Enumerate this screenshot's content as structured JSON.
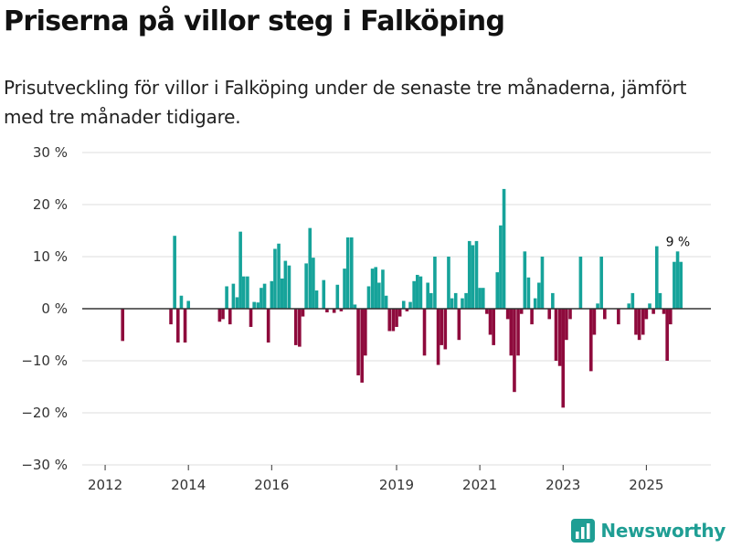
{
  "title": "Priserna på villor steg i Falköping",
  "subtitle": "Prisutveckling för villor i Falköping under de senaste tre månaderna, jämfört med tre månader tidigare.",
  "brand": {
    "name": "Newsworthy",
    "icon": "bar-chart-logo-icon"
  },
  "colors": {
    "positive": "#16a39a",
    "negative": "#8e0a3c",
    "grid": "#dddddd",
    "zero": "#333333",
    "text": "#333333"
  },
  "chart_data": {
    "type": "bar",
    "ylabel": "",
    "xlabel": "",
    "ylim": [
      -30,
      30
    ],
    "ytick_values": [
      30,
      20,
      10,
      0,
      -10,
      -20,
      -30
    ],
    "ytick_labels": [
      "30 %",
      "20 %",
      "10 %",
      "0 %",
      "−10 %",
      "−20 %",
      "−30 %"
    ],
    "xlim": [
      2011.45,
      2026.55
    ],
    "xticks": [
      {
        "value": 2012,
        "label": "2012"
      },
      {
        "value": 2014,
        "label": "2014"
      },
      {
        "value": 2016,
        "label": "2016"
      },
      {
        "value": 2019,
        "label": "2019"
      },
      {
        "value": 2021,
        "label": "2021"
      },
      {
        "value": 2023,
        "label": "2023"
      },
      {
        "value": 2025,
        "label": "2025"
      }
    ],
    "annotation": {
      "x": 2025.67,
      "value": 11,
      "label": "9 %"
    },
    "points": [
      {
        "x": 2012.42,
        "value": -6.2
      },
      {
        "x": 2013.58,
        "value": -3.0
      },
      {
        "x": 2013.67,
        "value": 14.0
      },
      {
        "x": 2013.75,
        "value": -6.5
      },
      {
        "x": 2013.83,
        "value": 2.5
      },
      {
        "x": 2013.92,
        "value": -6.5
      },
      {
        "x": 2014.0,
        "value": 1.5
      },
      {
        "x": 2014.75,
        "value": -2.5
      },
      {
        "x": 2014.83,
        "value": -2.0
      },
      {
        "x": 2014.92,
        "value": 4.3
      },
      {
        "x": 2015.0,
        "value": -3.0
      },
      {
        "x": 2015.08,
        "value": 4.8
      },
      {
        "x": 2015.17,
        "value": 2.2
      },
      {
        "x": 2015.25,
        "value": 14.8
      },
      {
        "x": 2015.33,
        "value": 6.2
      },
      {
        "x": 2015.42,
        "value": 6.2
      },
      {
        "x": 2015.5,
        "value": -3.5
      },
      {
        "x": 2015.58,
        "value": 1.3
      },
      {
        "x": 2015.67,
        "value": 1.2
      },
      {
        "x": 2015.75,
        "value": 4.0
      },
      {
        "x": 2015.83,
        "value": 4.8
      },
      {
        "x": 2015.92,
        "value": -6.5
      },
      {
        "x": 2016.0,
        "value": 5.3
      },
      {
        "x": 2016.08,
        "value": 11.5
      },
      {
        "x": 2016.17,
        "value": 12.5
      },
      {
        "x": 2016.25,
        "value": 5.8
      },
      {
        "x": 2016.33,
        "value": 9.2
      },
      {
        "x": 2016.42,
        "value": 8.3
      },
      {
        "x": 2016.58,
        "value": -7.0
      },
      {
        "x": 2016.67,
        "value": -7.3
      },
      {
        "x": 2016.75,
        "value": -1.5
      },
      {
        "x": 2016.83,
        "value": 8.7
      },
      {
        "x": 2016.92,
        "value": 15.5
      },
      {
        "x": 2017.0,
        "value": 9.8
      },
      {
        "x": 2017.08,
        "value": 3.5
      },
      {
        "x": 2017.25,
        "value": 5.5
      },
      {
        "x": 2017.33,
        "value": -0.7
      },
      {
        "x": 2017.5,
        "value": -0.8
      },
      {
        "x": 2017.58,
        "value": 4.6
      },
      {
        "x": 2017.67,
        "value": -0.5
      },
      {
        "x": 2017.75,
        "value": 7.7
      },
      {
        "x": 2017.83,
        "value": 13.7
      },
      {
        "x": 2017.92,
        "value": 13.7
      },
      {
        "x": 2018.0,
        "value": 0.8
      },
      {
        "x": 2018.08,
        "value": -12.8
      },
      {
        "x": 2018.17,
        "value": -14.2
      },
      {
        "x": 2018.25,
        "value": -9.0
      },
      {
        "x": 2018.33,
        "value": 4.3
      },
      {
        "x": 2018.42,
        "value": 7.7
      },
      {
        "x": 2018.5,
        "value": 8.0
      },
      {
        "x": 2018.58,
        "value": 5.0
      },
      {
        "x": 2018.67,
        "value": 7.5
      },
      {
        "x": 2018.75,
        "value": 2.5
      },
      {
        "x": 2018.83,
        "value": -4.3
      },
      {
        "x": 2018.92,
        "value": -4.3
      },
      {
        "x": 2019.0,
        "value": -3.5
      },
      {
        "x": 2019.08,
        "value": -1.5
      },
      {
        "x": 2019.17,
        "value": 1.5
      },
      {
        "x": 2019.25,
        "value": -0.5
      },
      {
        "x": 2019.33,
        "value": 1.3
      },
      {
        "x": 2019.42,
        "value": 5.3
      },
      {
        "x": 2019.5,
        "value": 6.5
      },
      {
        "x": 2019.58,
        "value": 6.2
      },
      {
        "x": 2019.67,
        "value": -9.0
      },
      {
        "x": 2019.75,
        "value": 5.0
      },
      {
        "x": 2019.83,
        "value": 3.0
      },
      {
        "x": 2019.92,
        "value": 10.0
      },
      {
        "x": 2020.0,
        "value": -10.8
      },
      {
        "x": 2020.08,
        "value": -7.0
      },
      {
        "x": 2020.17,
        "value": -7.8
      },
      {
        "x": 2020.25,
        "value": 10.0
      },
      {
        "x": 2020.33,
        "value": 2.0
      },
      {
        "x": 2020.42,
        "value": 3.0
      },
      {
        "x": 2020.5,
        "value": -6.0
      },
      {
        "x": 2020.58,
        "value": 2.0
      },
      {
        "x": 2020.67,
        "value": 3.0
      },
      {
        "x": 2020.75,
        "value": 13.0
      },
      {
        "x": 2020.83,
        "value": 12.2
      },
      {
        "x": 2020.92,
        "value": 13.0
      },
      {
        "x": 2021.0,
        "value": 4.0
      },
      {
        "x": 2021.08,
        "value": 4.0
      },
      {
        "x": 2021.17,
        "value": -1.0
      },
      {
        "x": 2021.25,
        "value": -5.0
      },
      {
        "x": 2021.33,
        "value": -7.0
      },
      {
        "x": 2021.42,
        "value": 7.0
      },
      {
        "x": 2021.5,
        "value": 16.0
      },
      {
        "x": 2021.58,
        "value": 23.0
      },
      {
        "x": 2021.67,
        "value": -2.0
      },
      {
        "x": 2021.75,
        "value": -9.0
      },
      {
        "x": 2021.83,
        "value": -16.0
      },
      {
        "x": 2021.92,
        "value": -9.0
      },
      {
        "x": 2022.0,
        "value": -1.0
      },
      {
        "x": 2022.08,
        "value": 11.0
      },
      {
        "x": 2022.17,
        "value": 6.0
      },
      {
        "x": 2022.25,
        "value": -3.0
      },
      {
        "x": 2022.33,
        "value": 2.0
      },
      {
        "x": 2022.42,
        "value": 5.0
      },
      {
        "x": 2022.5,
        "value": 10.0
      },
      {
        "x": 2022.67,
        "value": -2.0
      },
      {
        "x": 2022.75,
        "value": 3.0
      },
      {
        "x": 2022.83,
        "value": -10.0
      },
      {
        "x": 2022.92,
        "value": -11.0
      },
      {
        "x": 2023.0,
        "value": -19.0
      },
      {
        "x": 2023.08,
        "value": -6.0
      },
      {
        "x": 2023.17,
        "value": -2.0
      },
      {
        "x": 2023.42,
        "value": 10.0
      },
      {
        "x": 2023.67,
        "value": -12.0
      },
      {
        "x": 2023.75,
        "value": -5.0
      },
      {
        "x": 2023.83,
        "value": 1.0
      },
      {
        "x": 2023.92,
        "value": 10.0
      },
      {
        "x": 2024.0,
        "value": -2.0
      },
      {
        "x": 2024.33,
        "value": -3.0
      },
      {
        "x": 2024.58,
        "value": 1.0
      },
      {
        "x": 2024.67,
        "value": 3.0
      },
      {
        "x": 2024.75,
        "value": -5.0
      },
      {
        "x": 2024.83,
        "value": -6.0
      },
      {
        "x": 2024.92,
        "value": -5.0
      },
      {
        "x": 2025.0,
        "value": -2.0
      },
      {
        "x": 2025.08,
        "value": 1.0
      },
      {
        "x": 2025.17,
        "value": -1.0
      },
      {
        "x": 2025.25,
        "value": 12.0
      },
      {
        "x": 2025.33,
        "value": 3.0
      },
      {
        "x": 2025.42,
        "value": -1.0
      },
      {
        "x": 2025.5,
        "value": -10.0
      },
      {
        "x": 2025.58,
        "value": -3.0
      },
      {
        "x": 2025.67,
        "value": 9.0
      },
      {
        "x": 2025.75,
        "value": 11.0
      },
      {
        "x": 2025.83,
        "value": 9.0
      }
    ]
  }
}
